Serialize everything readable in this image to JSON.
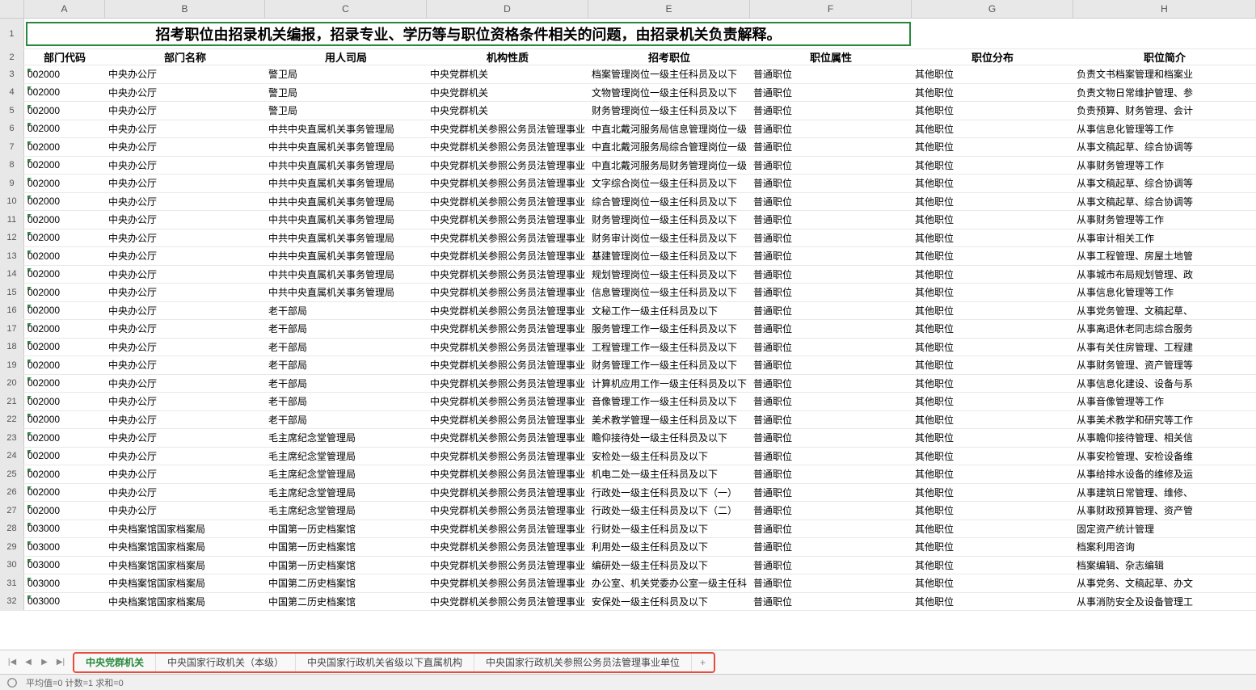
{
  "columns": [
    "A",
    "B",
    "C",
    "D",
    "E",
    "F",
    "G",
    "H"
  ],
  "title": "招考职位由招录机关编报，招录专业、学历等与职位资格条件相关的问题，由招录机关负责解释。",
  "headers": [
    "部门代码",
    "部门名称",
    "用人司局",
    "机构性质",
    "招考职位",
    "职位属性",
    "职位分布",
    "职位简介"
  ],
  "rows": [
    [
      "002000",
      "中央办公厅",
      "警卫局",
      "中央党群机关",
      "档案管理岗位一级主任科员及以下",
      "普通职位",
      "其他职位",
      "负责文书档案管理和档案业"
    ],
    [
      "002000",
      "中央办公厅",
      "警卫局",
      "中央党群机关",
      "文物管理岗位一级主任科员及以下",
      "普通职位",
      "其他职位",
      "负责文物日常维护管理、参"
    ],
    [
      "002000",
      "中央办公厅",
      "警卫局",
      "中央党群机关",
      "财务管理岗位一级主任科员及以下",
      "普通职位",
      "其他职位",
      "负责预算、财务管理、会计"
    ],
    [
      "002000",
      "中央办公厅",
      "中共中央直属机关事务管理局",
      "中央党群机关参照公务员法管理事业",
      "中直北戴河服务局信息管理岗位一级",
      "普通职位",
      "其他职位",
      "从事信息化管理等工作"
    ],
    [
      "002000",
      "中央办公厅",
      "中共中央直属机关事务管理局",
      "中央党群机关参照公务员法管理事业",
      "中直北戴河服务局综合管理岗位一级",
      "普通职位",
      "其他职位",
      "从事文稿起草、综合协调等"
    ],
    [
      "002000",
      "中央办公厅",
      "中共中央直属机关事务管理局",
      "中央党群机关参照公务员法管理事业",
      "中直北戴河服务局财务管理岗位一级",
      "普通职位",
      "其他职位",
      "从事财务管理等工作"
    ],
    [
      "002000",
      "中央办公厅",
      "中共中央直属机关事务管理局",
      "中央党群机关参照公务员法管理事业",
      "文字综合岗位一级主任科员及以下",
      "普通职位",
      "其他职位",
      "从事文稿起草、综合协调等"
    ],
    [
      "002000",
      "中央办公厅",
      "中共中央直属机关事务管理局",
      "中央党群机关参照公务员法管理事业",
      "综合管理岗位一级主任科员及以下",
      "普通职位",
      "其他职位",
      "从事文稿起草、综合协调等"
    ],
    [
      "002000",
      "中央办公厅",
      "中共中央直属机关事务管理局",
      "中央党群机关参照公务员法管理事业",
      "财务管理岗位一级主任科员及以下",
      "普通职位",
      "其他职位",
      "从事财务管理等工作"
    ],
    [
      "002000",
      "中央办公厅",
      "中共中央直属机关事务管理局",
      "中央党群机关参照公务员法管理事业",
      "财务审计岗位一级主任科员及以下",
      "普通职位",
      "其他职位",
      "从事审计相关工作"
    ],
    [
      "002000",
      "中央办公厅",
      "中共中央直属机关事务管理局",
      "中央党群机关参照公务员法管理事业",
      "基建管理岗位一级主任科员及以下",
      "普通职位",
      "其他职位",
      "从事工程管理、房屋土地管"
    ],
    [
      "002000",
      "中央办公厅",
      "中共中央直属机关事务管理局",
      "中央党群机关参照公务员法管理事业",
      "规划管理岗位一级主任科员及以下",
      "普通职位",
      "其他职位",
      "从事城市布局规划管理、政"
    ],
    [
      "002000",
      "中央办公厅",
      "中共中央直属机关事务管理局",
      "中央党群机关参照公务员法管理事业",
      "信息管理岗位一级主任科员及以下",
      "普通职位",
      "其他职位",
      "从事信息化管理等工作"
    ],
    [
      "002000",
      "中央办公厅",
      "老干部局",
      "中央党群机关参照公务员法管理事业",
      "文秘工作一级主任科员及以下",
      "普通职位",
      "其他职位",
      "从事党务管理、文稿起草、"
    ],
    [
      "002000",
      "中央办公厅",
      "老干部局",
      "中央党群机关参照公务员法管理事业",
      "服务管理工作一级主任科员及以下",
      "普通职位",
      "其他职位",
      "从事离退休老同志综合服务"
    ],
    [
      "002000",
      "中央办公厅",
      "老干部局",
      "中央党群机关参照公务员法管理事业",
      "工程管理工作一级主任科员及以下",
      "普通职位",
      "其他职位",
      "从事有关住房管理、工程建"
    ],
    [
      "002000",
      "中央办公厅",
      "老干部局",
      "中央党群机关参照公务员法管理事业",
      "财务管理工作一级主任科员及以下",
      "普通职位",
      "其他职位",
      "从事财务管理、资产管理等"
    ],
    [
      "002000",
      "中央办公厅",
      "老干部局",
      "中央党群机关参照公务员法管理事业",
      "计算机应用工作一级主任科员及以下",
      "普通职位",
      "其他职位",
      "从事信息化建设、设备与系"
    ],
    [
      "002000",
      "中央办公厅",
      "老干部局",
      "中央党群机关参照公务员法管理事业",
      "音像管理工作一级主任科员及以下",
      "普通职位",
      "其他职位",
      "从事音像管理等工作"
    ],
    [
      "002000",
      "中央办公厅",
      "老干部局",
      "中央党群机关参照公务员法管理事业",
      "美术教学管理一级主任科员及以下",
      "普通职位",
      "其他职位",
      "从事美术教学和研究等工作"
    ],
    [
      "002000",
      "中央办公厅",
      "毛主席纪念堂管理局",
      "中央党群机关参照公务员法管理事业",
      "瞻仰接待处一级主任科员及以下",
      "普通职位",
      "其他职位",
      "从事瞻仰接待管理、相关信"
    ],
    [
      "002000",
      "中央办公厅",
      "毛主席纪念堂管理局",
      "中央党群机关参照公务员法管理事业",
      "安检处一级主任科员及以下",
      "普通职位",
      "其他职位",
      "从事安检管理、安检设备维"
    ],
    [
      "002000",
      "中央办公厅",
      "毛主席纪念堂管理局",
      "中央党群机关参照公务员法管理事业",
      "机电二处一级主任科员及以下",
      "普通职位",
      "其他职位",
      "从事给排水设备的维修及运"
    ],
    [
      "002000",
      "中央办公厅",
      "毛主席纪念堂管理局",
      "中央党群机关参照公务员法管理事业",
      "行政处一级主任科员及以下（一）",
      "普通职位",
      "其他职位",
      "从事建筑日常管理、维修、"
    ],
    [
      "002000",
      "中央办公厅",
      "毛主席纪念堂管理局",
      "中央党群机关参照公务员法管理事业",
      "行政处一级主任科员及以下（二）",
      "普通职位",
      "其他职位",
      "从事财政预算管理、资产管"
    ],
    [
      "003000",
      "中央档案馆国家档案局",
      "中国第一历史档案馆",
      "中央党群机关参照公务员法管理事业",
      "行财处一级主任科员及以下",
      "普通职位",
      "其他职位",
      "固定资产统计管理"
    ],
    [
      "003000",
      "中央档案馆国家档案局",
      "中国第一历史档案馆",
      "中央党群机关参照公务员法管理事业",
      "利用处一级主任科员及以下",
      "普通职位",
      "其他职位",
      "档案利用咨询"
    ],
    [
      "003000",
      "中央档案馆国家档案局",
      "中国第一历史档案馆",
      "中央党群机关参照公务员法管理事业",
      "编研处一级主任科员及以下",
      "普通职位",
      "其他职位",
      "档案编辑、杂志编辑"
    ],
    [
      "003000",
      "中央档案馆国家档案局",
      "中国第二历史档案馆",
      "中央党群机关参照公务员法管理事业",
      "办公室、机关党委办公室一级主任科",
      "普通职位",
      "其他职位",
      "从事党务、文稿起草、办文"
    ],
    [
      "003000",
      "中央档案馆国家档案局",
      "中国第二历史档案馆",
      "中央党群机关参照公务员法管理事业",
      "安保处一级主任科员及以下",
      "普通职位",
      "其他职位",
      "从事消防安全及设备管理工"
    ]
  ],
  "tabs": {
    "items": [
      {
        "label": "中央党群机关",
        "active": true
      },
      {
        "label": "中央国家行政机关（本级）",
        "active": false
      },
      {
        "label": "中央国家行政机关省级以下直属机构",
        "active": false
      },
      {
        "label": "中央国家行政机关参照公务员法管理事业单位",
        "active": false
      }
    ]
  },
  "status": {
    "text": "平均值=0 计数=1 求和=0"
  },
  "colors": {
    "selection_border": "#28893c",
    "tab_highlight": "#e84c3d",
    "header_bg": "#e8e8e8",
    "grid_line": "#e8e8e8"
  }
}
